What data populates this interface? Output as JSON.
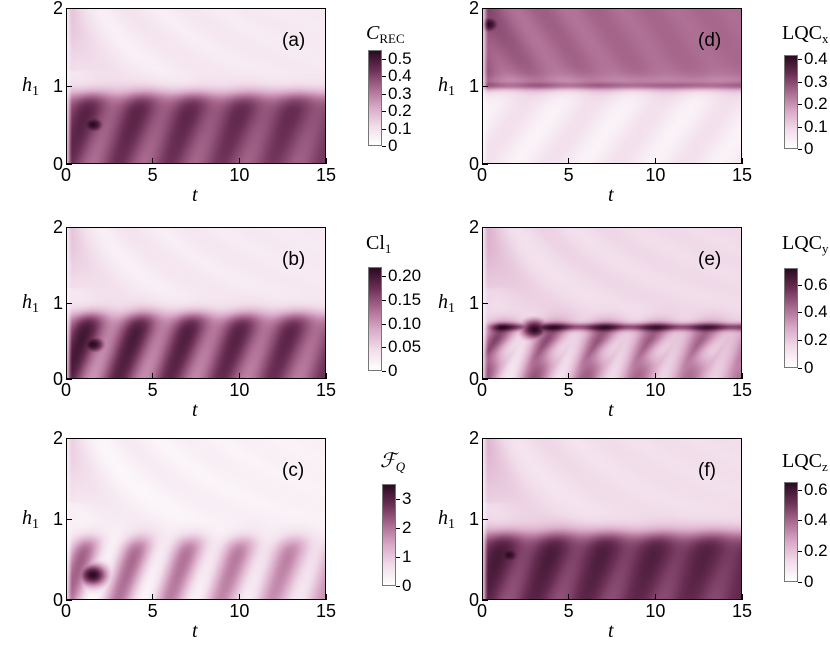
{
  "chart_data": [
    {
      "type": "heatmap",
      "panel_label": "(a)",
      "xlabel": "t",
      "ylabel": "h1",
      "xlim": [
        0,
        15
      ],
      "ylim": [
        0,
        2
      ],
      "x_ticks": [
        "0",
        "5",
        "10",
        "15"
      ],
      "y_ticks": [
        "0",
        "1",
        "2"
      ],
      "colorbar": {
        "title_main": "C",
        "title_sub": "REC",
        "title_italic": true,
        "range": [
          0,
          0.55
        ],
        "ticks": [
          "0.5",
          "0.4",
          "0.3",
          "0.2",
          "0.1",
          "0"
        ],
        "tick_values": [
          0.5,
          0.4,
          0.3,
          0.2,
          0.1,
          0
        ]
      },
      "pattern": {
        "band_top": 0.9,
        "band_level": 0.78,
        "low_level": 0.7,
        "upper_level": 0.12,
        "hotspot": [
          1.5,
          0.5
        ],
        "hotspot_level": 1.0,
        "ripple": 0.12
      }
    },
    {
      "type": "heatmap",
      "panel_label": "(b)",
      "xlabel": "t",
      "ylabel": "h1",
      "xlim": [
        0,
        15
      ],
      "ylim": [
        0,
        2
      ],
      "x_ticks": [
        "0",
        "5",
        "10",
        "15"
      ],
      "y_ticks": [
        "0",
        "1",
        "2"
      ],
      "colorbar": {
        "title_main": "Cl",
        "title_sub": "1",
        "title_italic": false,
        "range": [
          0,
          0.22
        ],
        "ticks": [
          "0.20",
          "0.15",
          "0.10",
          "0.05",
          "0"
        ],
        "tick_values": [
          0.2,
          0.15,
          0.1,
          0.05,
          0
        ]
      },
      "pattern": {
        "band_top": 0.85,
        "band_level": 0.75,
        "low_level": 0.75,
        "upper_level": 0.12,
        "hotspot": [
          1.5,
          0.45
        ],
        "hotspot_level": 1.0,
        "ripple": 0.22
      }
    },
    {
      "type": "heatmap",
      "panel_label": "(c)",
      "xlabel": "t",
      "ylabel": "h1",
      "xlim": [
        0,
        15
      ],
      "ylim": [
        0,
        2
      ],
      "x_ticks": [
        "0",
        "5",
        "10",
        "15"
      ],
      "y_ticks": [
        "0",
        "1",
        "2"
      ],
      "colorbar": {
        "title_main": "ℱ",
        "title_sub": "Q",
        "title_italic": true,
        "range": [
          0,
          3.5
        ],
        "ticks": [
          "3",
          "2",
          "1",
          "0"
        ],
        "tick_values": [
          3,
          2,
          1,
          0
        ]
      },
      "pattern": {
        "band_top": 0.75,
        "band_level": 0.38,
        "low_level": 0.35,
        "upper_level": 0.08,
        "hotspot": [
          1.5,
          0.3
        ],
        "hotspot_level": 1.0,
        "ripple": 0.3
      }
    },
    {
      "type": "heatmap",
      "panel_label": "(d)",
      "xlabel": "t",
      "ylabel": "h1",
      "xlim": [
        0,
        15
      ],
      "ylim": [
        0,
        2
      ],
      "x_ticks": [
        "0",
        "5",
        "10",
        "15"
      ],
      "y_ticks": [
        "0",
        "1",
        "2"
      ],
      "colorbar": {
        "title_main": "LQC",
        "title_sub": "x",
        "title_italic": false,
        "range": [
          0,
          0.42
        ],
        "ticks": [
          "0.4",
          "0.3",
          "0.2",
          "0.1",
          "0"
        ],
        "tick_values": [
          0.4,
          0.3,
          0.2,
          0.1,
          0
        ]
      },
      "pattern": {
        "band_top": 1.0,
        "band_level": 0.6,
        "low_level": 0.12,
        "upper_level": 0.6,
        "hotspot": [
          0.3,
          1.8
        ],
        "hotspot_level": 1.0,
        "ripple": 0.06,
        "inverted": true
      }
    },
    {
      "type": "heatmap",
      "panel_label": "(e)",
      "xlabel": "t",
      "ylabel": "h1",
      "xlim": [
        0,
        15
      ],
      "ylim": [
        0,
        2
      ],
      "x_ticks": [
        "0",
        "5",
        "10",
        "15"
      ],
      "y_ticks": [
        "0",
        "1",
        "2"
      ],
      "colorbar": {
        "title_main": "LQC",
        "title_sub": "y",
        "title_italic": false,
        "range": [
          0,
          0.72
        ],
        "ticks": [
          "0.6",
          "0.4",
          "0.2",
          "0"
        ],
        "tick_values": [
          0.6,
          0.4,
          0.2,
          0
        ]
      },
      "pattern": {
        "band_top": 0.72,
        "band_level": 0.5,
        "low_level": 0.4,
        "upper_level": 0.2,
        "hotspot": [
          3.0,
          0.65
        ],
        "hotspot_level": 1.0,
        "ripple": 0.3,
        "ridge": 0.68
      }
    },
    {
      "type": "heatmap",
      "panel_label": "(f)",
      "xlabel": "t",
      "ylabel": "h1",
      "xlim": [
        0,
        15
      ],
      "ylim": [
        0,
        2
      ],
      "x_ticks": [
        "0",
        "5",
        "10",
        "15"
      ],
      "y_ticks": [
        "0",
        "1",
        "2"
      ],
      "colorbar": {
        "title_main": "LQC",
        "title_sub": "z",
        "title_italic": false,
        "range": [
          0,
          0.65
        ],
        "ticks": [
          "0.6",
          "0.4",
          "0.2",
          "0"
        ],
        "tick_values": [
          0.6,
          0.4,
          0.2,
          0
        ]
      },
      "pattern": {
        "band_top": 0.82,
        "band_level": 0.85,
        "low_level": 0.7,
        "upper_level": 0.18,
        "hotspot": [
          1.5,
          0.55
        ],
        "hotspot_level": 1.0,
        "ripple": 0.1
      }
    }
  ],
  "colormap": [
    "#ffffff",
    "#f1dcea",
    "#d9a9c7",
    "#ab6b91",
    "#6b2f55",
    "#2a0a20"
  ]
}
